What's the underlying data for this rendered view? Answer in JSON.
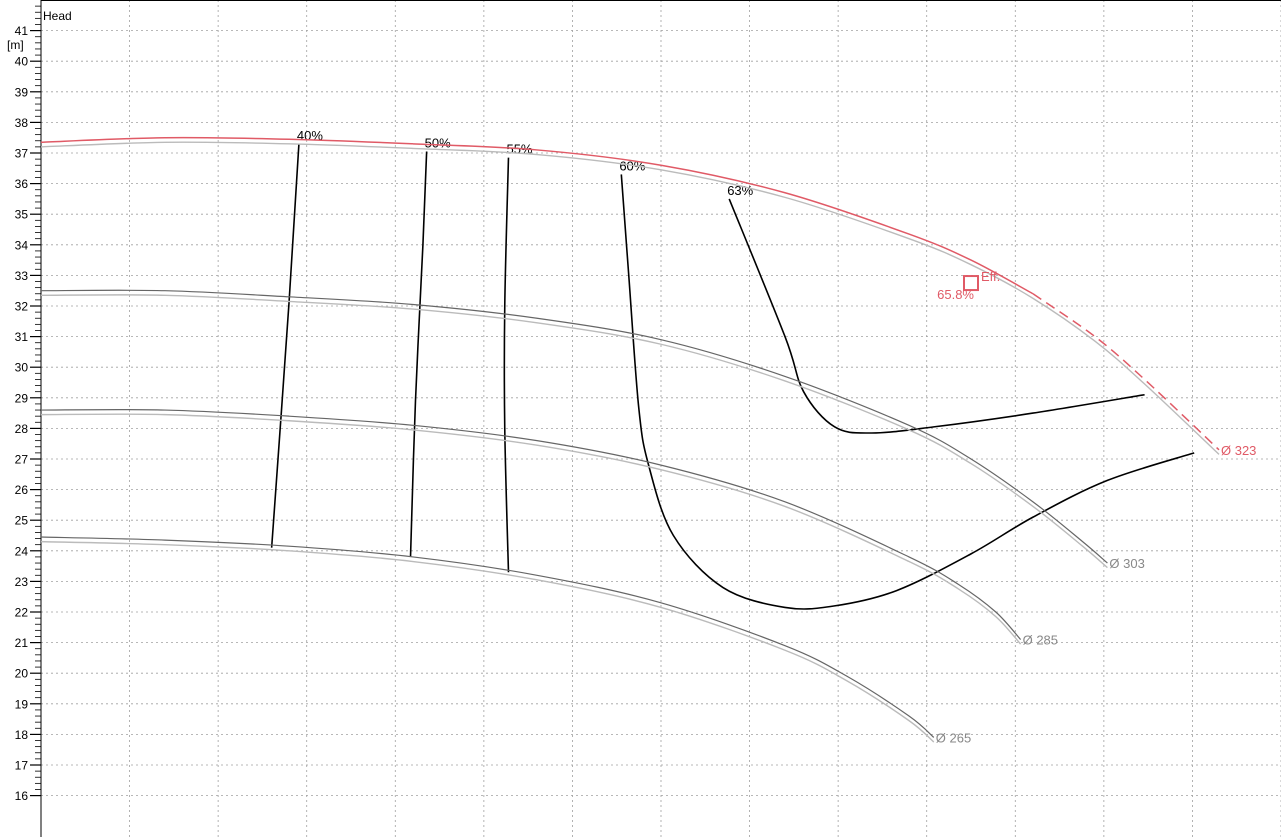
{
  "chart_data": {
    "type": "line",
    "title": "Head",
    "ylabel": "[m]",
    "ylim": [
      16,
      42
    ],
    "y_ticks": [
      16,
      17,
      18,
      19,
      20,
      21,
      22,
      23,
      24,
      25,
      26,
      27,
      28,
      29,
      30,
      31,
      32,
      33,
      34,
      35,
      36,
      37,
      38,
      39,
      40,
      41
    ],
    "x_grid_count": 14,
    "grid": true,
    "series": [
      {
        "name": "Ø 323",
        "color": "#e05a66",
        "points": [
          [
            0.0,
            37.35
          ],
          [
            0.1,
            37.5
          ],
          [
            0.2,
            37.45
          ],
          [
            0.3,
            37.3
          ],
          [
            0.4,
            37.1
          ],
          [
            0.5,
            36.6
          ],
          [
            0.6,
            35.7
          ],
          [
            0.7,
            34.35
          ],
          [
            0.75,
            33.5
          ],
          [
            0.8,
            32.4
          ],
          [
            0.85,
            31.0
          ],
          [
            0.89,
            29.6
          ],
          [
            0.95,
            27.3
          ]
        ],
        "dashed_from_x": 0.8
      },
      {
        "name": "Ø 303",
        "color": "#666666",
        "points": [
          [
            0.0,
            32.5
          ],
          [
            0.1,
            32.5
          ],
          [
            0.2,
            32.3
          ],
          [
            0.3,
            32.05
          ],
          [
            0.4,
            31.6
          ],
          [
            0.5,
            30.9
          ],
          [
            0.6,
            29.7
          ],
          [
            0.7,
            28.1
          ],
          [
            0.75,
            27.0
          ],
          [
            0.8,
            25.6
          ],
          [
            0.84,
            24.3
          ],
          [
            0.86,
            23.6
          ]
        ]
      },
      {
        "name": "Ø 285",
        "color": "#666666",
        "points": [
          [
            0.0,
            28.6
          ],
          [
            0.1,
            28.6
          ],
          [
            0.2,
            28.4
          ],
          [
            0.3,
            28.1
          ],
          [
            0.4,
            27.6
          ],
          [
            0.5,
            26.8
          ],
          [
            0.6,
            25.6
          ],
          [
            0.7,
            23.8
          ],
          [
            0.74,
            22.9
          ],
          [
            0.77,
            22.0
          ],
          [
            0.79,
            21.1
          ]
        ]
      },
      {
        "name": "Ø 265",
        "color": "#666666",
        "points": [
          [
            0.0,
            24.45
          ],
          [
            0.1,
            24.35
          ],
          [
            0.2,
            24.15
          ],
          [
            0.3,
            23.8
          ],
          [
            0.4,
            23.2
          ],
          [
            0.5,
            22.3
          ],
          [
            0.6,
            20.9
          ],
          [
            0.65,
            19.9
          ],
          [
            0.7,
            18.6
          ],
          [
            0.72,
            17.9
          ]
        ]
      }
    ],
    "efficiency_contours": [
      {
        "label": "40%",
        "points": [
          [
            0.208,
            37.3
          ],
          [
            0.2,
            32.1
          ],
          [
            0.186,
            24.1
          ]
        ]
      },
      {
        "label": "50%",
        "points": [
          [
            0.311,
            37.05
          ],
          [
            0.308,
            34.0
          ],
          [
            0.302,
            28.9
          ],
          [
            0.298,
            23.8
          ]
        ]
      },
      {
        "label": "55%",
        "points": [
          [
            0.377,
            36.85
          ],
          [
            0.374,
            32.0
          ],
          [
            0.374,
            28.0
          ],
          [
            0.377,
            23.3
          ]
        ]
      },
      {
        "label": "60%",
        "points": [
          [
            0.468,
            36.3
          ],
          [
            0.474,
            33.0
          ],
          [
            0.482,
            28.7
          ],
          [
            0.49,
            26.8
          ],
          [
            0.51,
            24.5
          ],
          [
            0.55,
            22.8
          ],
          [
            0.6,
            22.15
          ],
          [
            0.64,
            22.2
          ],
          [
            0.69,
            22.7
          ],
          [
            0.75,
            23.9
          ],
          [
            0.8,
            25.1
          ],
          [
            0.86,
            26.3
          ],
          [
            0.93,
            27.2
          ]
        ]
      },
      {
        "label": "63%",
        "points": [
          [
            0.555,
            35.5
          ],
          [
            0.6,
            31.0
          ],
          [
            0.615,
            29.2
          ],
          [
            0.64,
            28.05
          ],
          [
            0.67,
            27.85
          ],
          [
            0.72,
            28.05
          ],
          [
            0.8,
            28.5
          ],
          [
            0.89,
            29.1
          ]
        ]
      }
    ],
    "annotations": {
      "eff_marker": {
        "x": 0.75,
        "y": 32.75,
        "label": "Eff.",
        "value": "65.8%",
        "color": "#e05a66"
      }
    }
  }
}
